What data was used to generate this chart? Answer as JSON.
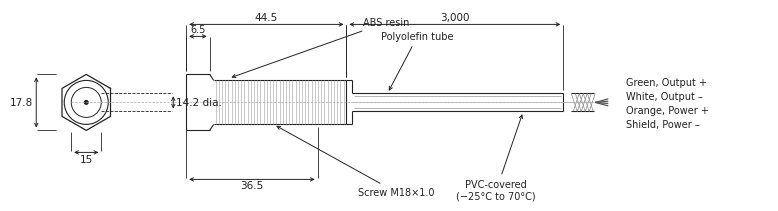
{
  "bg_color": "#ffffff",
  "line_color": "#222222",
  "dim_color": "#222222",
  "annotations": {
    "dim_445": "44.5",
    "dim_3000": "3,000",
    "dim_65": "6.5",
    "dim_365": "36.5",
    "dim_178": "17.8",
    "dim_142dia": "14.2 dia.",
    "dim_15": "15",
    "label_abs": "ABS resin",
    "label_poly": "Polyolefin tube",
    "label_screw": "Screw M18×1.0",
    "label_pvc": "PVC-covered\n(−25°C to 70°C)",
    "label_green": "Green, Output +\nWhite, Output –",
    "label_orange": "Orange, Power +\nShield, Power –"
  },
  "font_size": 7.5,
  "small_font": 7.0
}
